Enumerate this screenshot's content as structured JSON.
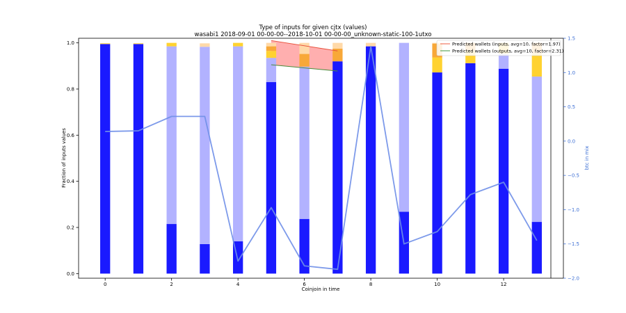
{
  "chart_data": {
    "type": "bar",
    "title": "Type of inputs for given cjtx (values)",
    "subtitle": "wasabi1 2018-09-01 00-00-00--2018-10-01 00-00-00_unknown-static-100-1utxo",
    "xlabel": "Coinjoin in time",
    "ylabel": "Fraction of inputs values",
    "y2label": "btc in mix",
    "xlim": [
      -0.8,
      13.8
    ],
    "ylim": [
      -0.02,
      1.02
    ],
    "y2lim": [
      -2.0,
      1.5
    ],
    "xticks": [
      0,
      2,
      4,
      6,
      8,
      10,
      12
    ],
    "yticks": [
      0.0,
      0.2,
      0.4,
      0.6,
      0.8,
      1.0
    ],
    "y2ticks": [
      -2.0,
      -1.5,
      -1.0,
      -0.5,
      0.0,
      0.5,
      1.0,
      1.5
    ],
    "x": [
      0,
      1,
      2,
      3,
      4,
      5,
      6,
      7,
      8,
      9,
      10,
      11,
      12,
      13
    ],
    "series": [
      {
        "key": "fresh",
        "color": "#1a1aff",
        "values": [
          0.995,
          0.995,
          0.215,
          0.128,
          0.14,
          0.83,
          0.237,
          0.92,
          0.985,
          0.268,
          0.872,
          0.912,
          0.888,
          0.224
        ]
      },
      {
        "key": "remix",
        "color": "#b2b2ff",
        "values": [
          0.0,
          0.0,
          0.77,
          0.855,
          0.845,
          0.105,
          0.66,
          0.0,
          0.0,
          0.732,
          0.0,
          0.0,
          0.065,
          0.63
        ]
      },
      {
        "key": "friends",
        "color": "#ffd230",
        "values": [
          0.003,
          0.003,
          0.015,
          0.0,
          0.015,
          0.03,
          0.0,
          0.0,
          0.0,
          0.0,
          0.065,
          0.055,
          0.047,
          0.1
        ]
      },
      {
        "key": "other",
        "color": "#f8a838",
        "values": [
          0.0,
          0.0,
          0.0,
          0.0,
          0.0,
          0.02,
          0.055,
          0.055,
          0.0,
          0.0,
          0.06,
          0.033,
          0.0,
          0.046
        ]
      },
      {
        "key": "unknown",
        "color": "#ffd9a8",
        "values": [
          0.0,
          0.0,
          0.0,
          0.015,
          0.0,
          0.015,
          0.048,
          0.025,
          0.015,
          0.0,
          0.003,
          0.0,
          0.0,
          0.0
        ]
      }
    ],
    "btc_line": {
      "color": "#6f8fe8",
      "values": [
        0.14,
        0.15,
        0.36,
        0.36,
        -1.75,
        -0.97,
        -1.82,
        -1.87,
        1.38,
        -1.5,
        -1.32,
        -0.78,
        -0.6,
        -1.45
      ]
    },
    "prediction_band": {
      "x": [
        5,
        7
      ],
      "upper": [
        1.01,
        0.965
      ],
      "lower": [
        0.905,
        0.878
      ],
      "fill": "#ff7a7a",
      "upper_color": "#e8503a",
      "lower_color": "#4a8a3a"
    },
    "legend": {
      "placement": "top-right",
      "entries": [
        {
          "label": "Predicted wallets (inputs, avg=10, factor=1.97)",
          "color": "#f07860"
        },
        {
          "label": "Predicted wallets (outputs, avg=10, factor=2.31)",
          "color": "#60a860"
        }
      ]
    }
  }
}
